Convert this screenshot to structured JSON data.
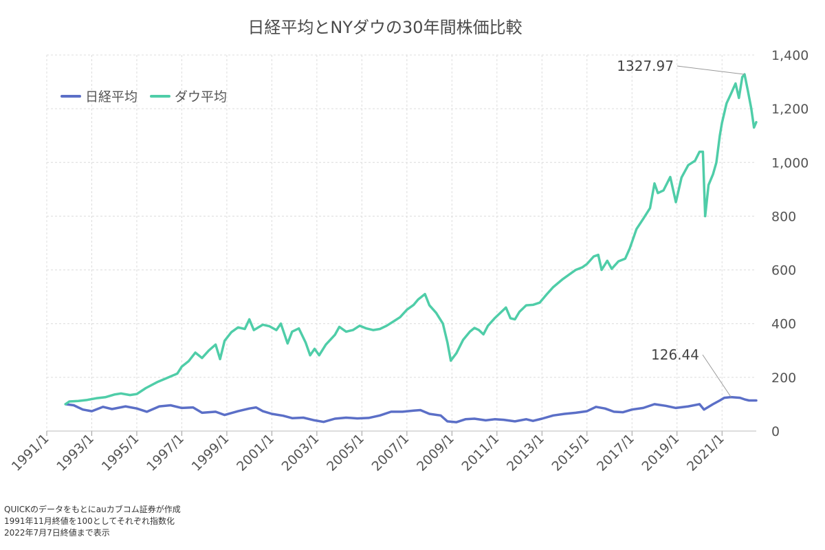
{
  "chart_data": {
    "type": "line",
    "title": "日経平均とNYダウの30年間株価比較",
    "x_range": [
      1991.833,
      2022.52
    ],
    "ylim": [
      0,
      1400
    ],
    "y_ticks": [
      {
        "value": 0,
        "label": "0"
      },
      {
        "value": 200,
        "label": "200"
      },
      {
        "value": 400,
        "label": "400"
      },
      {
        "value": 600,
        "label": "600"
      },
      {
        "value": 800,
        "label": "800"
      },
      {
        "value": 1000,
        "label": "1,000"
      },
      {
        "value": 1200,
        "label": "1,200"
      },
      {
        "value": 1400,
        "label": "1,400"
      }
    ],
    "x_ticks": [
      {
        "value": 1991.0,
        "label": "1991/1"
      },
      {
        "value": 1993.0,
        "label": "1993/1"
      },
      {
        "value": 1995.0,
        "label": "1995/1"
      },
      {
        "value": 1997.0,
        "label": "1997/1"
      },
      {
        "value": 1999.0,
        "label": "1999/1"
      },
      {
        "value": 2001.0,
        "label": "2001/1"
      },
      {
        "value": 2003.0,
        "label": "2003/1"
      },
      {
        "value": 2005.0,
        "label": "2005/1"
      },
      {
        "value": 2007.0,
        "label": "2007/1"
      },
      {
        "value": 2009.0,
        "label": "2009/1"
      },
      {
        "value": 2011.0,
        "label": "2011/1"
      },
      {
        "value": 2013.0,
        "label": "2013/1"
      },
      {
        "value": 2015.0,
        "label": "2015/1"
      },
      {
        "value": 2017.0,
        "label": "2017/1"
      },
      {
        "value": 2019.0,
        "label": "2019/1"
      },
      {
        "value": 2021.0,
        "label": "2021/1"
      }
    ],
    "grid": true,
    "legend_position": "top-left",
    "series": [
      {
        "name": "日経平均",
        "color": "#5b6fc7",
        "points": [
          [
            1991.833,
            100
          ],
          [
            1992.2,
            96
          ],
          [
            1992.6,
            80
          ],
          [
            1993.0,
            74
          ],
          [
            1993.5,
            90
          ],
          [
            1993.9,
            82
          ],
          [
            1994.5,
            92
          ],
          [
            1995.0,
            84
          ],
          [
            1995.45,
            72
          ],
          [
            1996.0,
            92
          ],
          [
            1996.5,
            96
          ],
          [
            1997.0,
            86
          ],
          [
            1997.5,
            88
          ],
          [
            1997.9,
            68
          ],
          [
            1998.5,
            72
          ],
          [
            1998.9,
            60
          ],
          [
            1999.5,
            74
          ],
          [
            2000.0,
            84
          ],
          [
            2000.3,
            88
          ],
          [
            2000.6,
            74
          ],
          [
            2001.0,
            64
          ],
          [
            2001.5,
            57
          ],
          [
            2001.9,
            48
          ],
          [
            2002.4,
            50
          ],
          [
            2002.9,
            40
          ],
          [
            2003.3,
            34
          ],
          [
            2003.8,
            46
          ],
          [
            2004.3,
            50
          ],
          [
            2004.8,
            47
          ],
          [
            2005.3,
            49
          ],
          [
            2005.8,
            58
          ],
          [
            2006.3,
            72
          ],
          [
            2006.8,
            72
          ],
          [
            2007.3,
            76
          ],
          [
            2007.6,
            78
          ],
          [
            2008.0,
            64
          ],
          [
            2008.5,
            58
          ],
          [
            2008.8,
            36
          ],
          [
            2009.2,
            33
          ],
          [
            2009.6,
            44
          ],
          [
            2010.0,
            46
          ],
          [
            2010.5,
            40
          ],
          [
            2010.9,
            44
          ],
          [
            2011.3,
            42
          ],
          [
            2011.8,
            36
          ],
          [
            2012.3,
            44
          ],
          [
            2012.6,
            38
          ],
          [
            2013.0,
            46
          ],
          [
            2013.5,
            58
          ],
          [
            2014.0,
            64
          ],
          [
            2014.5,
            68
          ],
          [
            2015.0,
            74
          ],
          [
            2015.4,
            90
          ],
          [
            2015.8,
            84
          ],
          [
            2016.2,
            72
          ],
          [
            2016.6,
            70
          ],
          [
            2017.0,
            80
          ],
          [
            2017.5,
            86
          ],
          [
            2018.0,
            100
          ],
          [
            2018.5,
            94
          ],
          [
            2018.95,
            86
          ],
          [
            2019.5,
            92
          ],
          [
            2020.0,
            100
          ],
          [
            2020.2,
            80
          ],
          [
            2020.6,
            100
          ],
          [
            2020.9,
            114
          ],
          [
            2021.1,
            124
          ],
          [
            2021.4,
            126.44
          ],
          [
            2021.8,
            124
          ],
          [
            2022.0,
            118
          ],
          [
            2022.2,
            114
          ],
          [
            2022.52,
            114
          ]
        ]
      },
      {
        "name": "ダウ平均",
        "color": "#4fcda8",
        "points": [
          [
            1991.833,
            100
          ],
          [
            1992.0,
            110
          ],
          [
            1992.4,
            112
          ],
          [
            1992.8,
            116
          ],
          [
            1993.2,
            122
          ],
          [
            1993.6,
            126
          ],
          [
            1994.0,
            136
          ],
          [
            1994.3,
            140
          ],
          [
            1994.7,
            134
          ],
          [
            1995.0,
            138
          ],
          [
            1995.4,
            160
          ],
          [
            1995.9,
            182
          ],
          [
            1996.3,
            196
          ],
          [
            1996.8,
            214
          ],
          [
            1997.0,
            240
          ],
          [
            1997.3,
            260
          ],
          [
            1997.6,
            292
          ],
          [
            1997.9,
            272
          ],
          [
            1998.2,
            300
          ],
          [
            1998.5,
            322
          ],
          [
            1998.7,
            268
          ],
          [
            1998.9,
            336
          ],
          [
            1999.2,
            368
          ],
          [
            1999.5,
            386
          ],
          [
            1999.8,
            380
          ],
          [
            2000.0,
            416
          ],
          [
            2000.2,
            376
          ],
          [
            2000.6,
            396
          ],
          [
            2000.9,
            390
          ],
          [
            2001.2,
            376
          ],
          [
            2001.4,
            400
          ],
          [
            2001.7,
            326
          ],
          [
            2001.9,
            370
          ],
          [
            2002.2,
            382
          ],
          [
            2002.5,
            330
          ],
          [
            2002.7,
            282
          ],
          [
            2002.9,
            306
          ],
          [
            2003.1,
            282
          ],
          [
            2003.4,
            322
          ],
          [
            2003.8,
            358
          ],
          [
            2004.0,
            388
          ],
          [
            2004.3,
            370
          ],
          [
            2004.6,
            376
          ],
          [
            2004.9,
            392
          ],
          [
            2005.2,
            382
          ],
          [
            2005.5,
            376
          ],
          [
            2005.8,
            380
          ],
          [
            2006.1,
            392
          ],
          [
            2006.4,
            408
          ],
          [
            2006.7,
            424
          ],
          [
            2007.0,
            452
          ],
          [
            2007.3,
            470
          ],
          [
            2007.5,
            490
          ],
          [
            2007.8,
            510
          ],
          [
            2008.0,
            468
          ],
          [
            2008.3,
            440
          ],
          [
            2008.6,
            400
          ],
          [
            2008.8,
            330
          ],
          [
            2008.95,
            262
          ],
          [
            2009.2,
            290
          ],
          [
            2009.5,
            340
          ],
          [
            2009.8,
            370
          ],
          [
            2010.0,
            384
          ],
          [
            2010.2,
            376
          ],
          [
            2010.4,
            360
          ],
          [
            2010.6,
            392
          ],
          [
            2010.9,
            420
          ],
          [
            2011.2,
            444
          ],
          [
            2011.4,
            460
          ],
          [
            2011.6,
            420
          ],
          [
            2011.8,
            416
          ],
          [
            2012.0,
            444
          ],
          [
            2012.3,
            468
          ],
          [
            2012.6,
            470
          ],
          [
            2012.9,
            478
          ],
          [
            2013.2,
            508
          ],
          [
            2013.5,
            536
          ],
          [
            2013.9,
            564
          ],
          [
            2014.2,
            582
          ],
          [
            2014.5,
            600
          ],
          [
            2014.8,
            610
          ],
          [
            2015.0,
            622
          ],
          [
            2015.3,
            650
          ],
          [
            2015.5,
            656
          ],
          [
            2015.65,
            600
          ],
          [
            2015.9,
            634
          ],
          [
            2016.1,
            604
          ],
          [
            2016.4,
            632
          ],
          [
            2016.7,
            642
          ],
          [
            2016.9,
            680
          ],
          [
            2017.2,
            752
          ],
          [
            2017.5,
            790
          ],
          [
            2017.8,
            830
          ],
          [
            2018.0,
            922
          ],
          [
            2018.15,
            886
          ],
          [
            2018.4,
            896
          ],
          [
            2018.7,
            946
          ],
          [
            2018.95,
            852
          ],
          [
            2019.2,
            944
          ],
          [
            2019.5,
            990
          ],
          [
            2019.8,
            1006
          ],
          [
            2020.0,
            1040
          ],
          [
            2020.15,
            1040
          ],
          [
            2020.25,
            800
          ],
          [
            2020.4,
            916
          ],
          [
            2020.6,
            956
          ],
          [
            2020.75,
            1000
          ],
          [
            2020.9,
            1100
          ],
          [
            2021.0,
            1148
          ],
          [
            2021.2,
            1220
          ],
          [
            2021.4,
            1256
          ],
          [
            2021.6,
            1294
          ],
          [
            2021.75,
            1240
          ],
          [
            2021.9,
            1318
          ],
          [
            2022.0,
            1327.97
          ],
          [
            2022.15,
            1266
          ],
          [
            2022.3,
            1200
          ],
          [
            2022.42,
            1130
          ],
          [
            2022.52,
            1150
          ]
        ]
      }
    ],
    "annotations": [
      {
        "series": "ダウ平均",
        "label": "1327.97",
        "x": 2022.0,
        "y": 1327.97
      },
      {
        "series": "日経平均",
        "label": "126.44",
        "x": 2021.4,
        "y": 126.44
      }
    ]
  },
  "footnotes": [
    "QUICKのデータをもとにauカブコム証券が作成",
    "1991年11月終値を100としてそれぞれ指数化",
    "2022年7月7日終値まで表示"
  ]
}
